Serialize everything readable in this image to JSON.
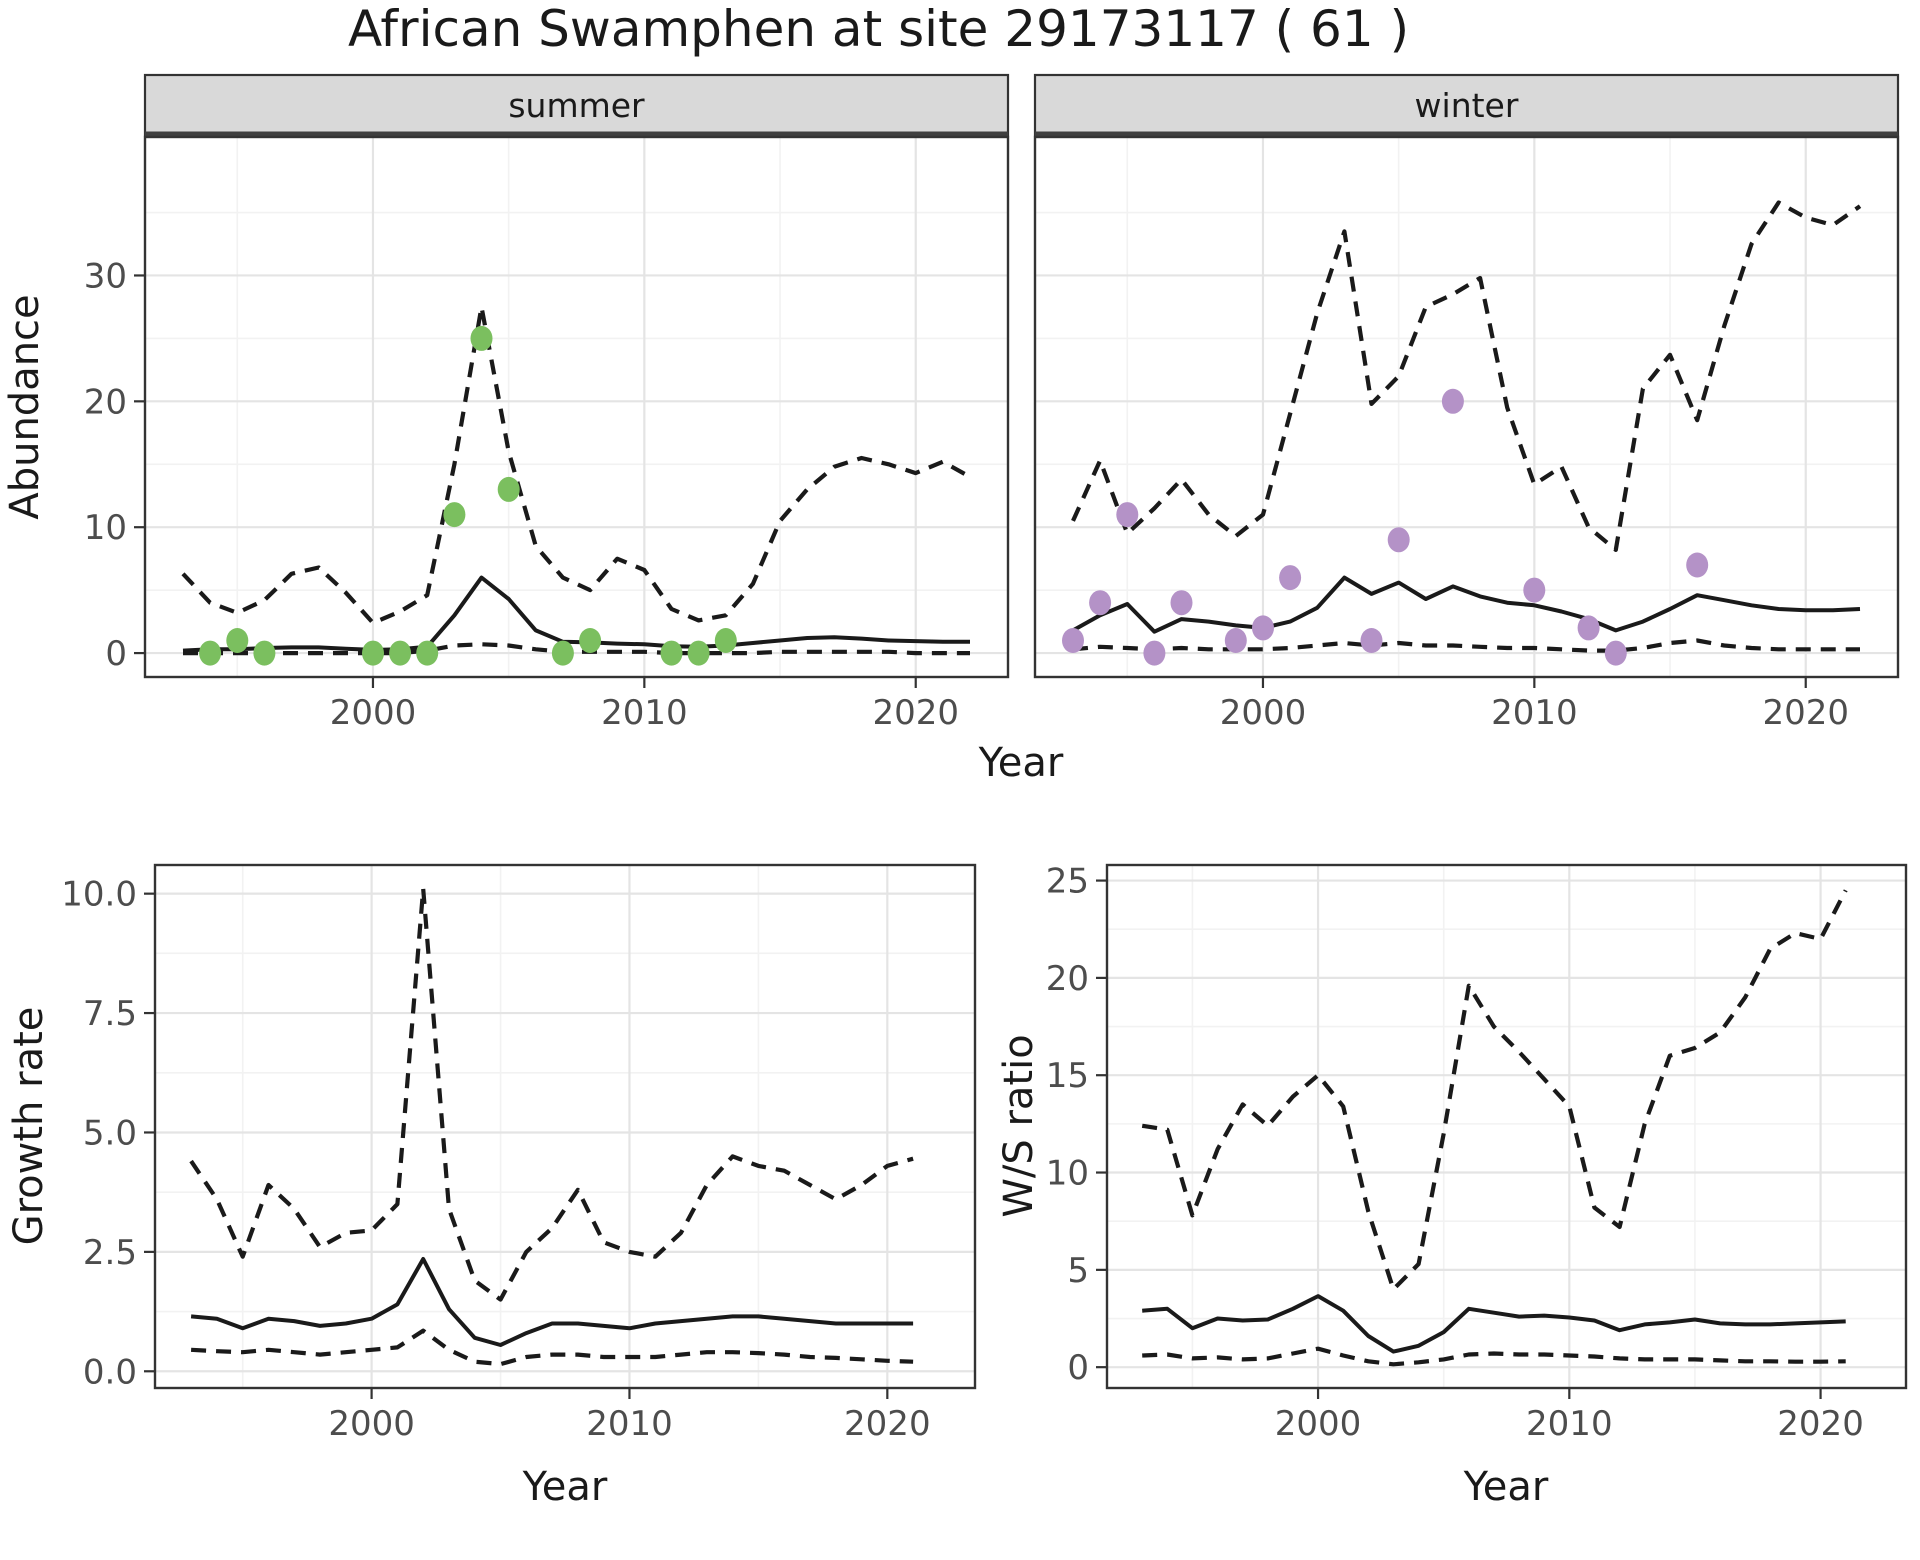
{
  "title": "African Swamphen at site 29173117 ( 61 )",
  "colors": {
    "background": "#FFFFFF",
    "panel_border": "#333333",
    "grid_major": "#E4E4E4",
    "grid_minor": "#F2F2F2",
    "line": "#1A1A1A",
    "strip_bg": "#D9D9D9",
    "strip_text": "#1A1A1A",
    "strip_underline": "#3F3F3F",
    "tick_text": "#4D4D4D",
    "axis_title_text": "#1A1A1A",
    "summer_point": "#7BBF5F",
    "winter_point": "#B492C7"
  },
  "chart_data": [
    {
      "type": "line",
      "title": "Abundance by season (faceted: summer | winter)",
      "xlabel": "Year",
      "ylabel": "Abundance",
      "xlim": [
        1991.6,
        2023.4
      ],
      "ylim": [
        -1.9,
        41
      ],
      "xticks": [
        2000,
        2010,
        2020
      ],
      "xtick_labels": [
        "2000",
        "2010",
        "2020"
      ],
      "xminor": [
        1995,
        2005,
        2015
      ],
      "yticks": [
        0,
        10,
        20,
        30
      ],
      "ytick_labels": [
        "0",
        "10",
        "20",
        "30"
      ],
      "yminor": [
        5,
        15,
        25,
        35
      ],
      "x": [
        1993,
        1994,
        1995,
        1996,
        1997,
        1998,
        1999,
        2000,
        2001,
        2002,
        2003,
        2004,
        2005,
        2006,
        2007,
        2008,
        2009,
        2010,
        2011,
        2012,
        2013,
        2014,
        2015,
        2016,
        2017,
        2018,
        2019,
        2020,
        2021,
        2022
      ],
      "facets": [
        {
          "label": "summer",
          "point_color": "#7BBF5F",
          "series": [
            {
              "name": "median",
              "style": "solid",
              "values": [
                0.2,
                0.3,
                0.3,
                0.4,
                0.45,
                0.45,
                0.35,
                0.25,
                0.3,
                0.5,
                3.0,
                6.0,
                4.3,
                1.8,
                0.9,
                0.85,
                0.75,
                0.7,
                0.55,
                0.5,
                0.6,
                0.8,
                1.0,
                1.2,
                1.25,
                1.15,
                1.0,
                0.95,
                0.9,
                0.9
              ]
            },
            {
              "name": "upper_ci",
              "style": "dashed",
              "values": [
                6.3,
                4.0,
                3.2,
                4.2,
                6.3,
                6.8,
                4.8,
                2.4,
                3.3,
                4.6,
                15.0,
                27.5,
                16.0,
                8.5,
                6.0,
                5.0,
                7.5,
                6.6,
                3.5,
                2.6,
                3.0,
                5.5,
                10.5,
                13.0,
                14.8,
                15.5,
                15.0,
                14.3,
                15.2,
                14.0
              ]
            },
            {
              "name": "lower_ci",
              "style": "dashed",
              "values": [
                0,
                0,
                0,
                0,
                0,
                0,
                0,
                0,
                0,
                0.2,
                0.6,
                0.7,
                0.6,
                0.3,
                0.1,
                0.1,
                0.1,
                0.1,
                0,
                0,
                0,
                0,
                0.1,
                0.1,
                0.1,
                0.1,
                0.1,
                0,
                0,
                0
              ]
            }
          ],
          "observations": {
            "years": [
              1994,
              1995,
              1996,
              2000,
              2001,
              2002,
              2003,
              2004,
              2005,
              2007,
              2008,
              2011,
              2012,
              2013
            ],
            "values": [
              0,
              1,
              0,
              0,
              0,
              0,
              11,
              25,
              13,
              0,
              1,
              0,
              0,
              1
            ]
          }
        },
        {
          "label": "winter",
          "point_color": "#B492C7",
          "series": [
            {
              "name": "median",
              "style": "solid",
              "values": [
                1.8,
                3.0,
                3.9,
                1.7,
                2.7,
                2.5,
                2.2,
                2.0,
                2.5,
                3.6,
                6.0,
                4.7,
                5.6,
                4.3,
                5.3,
                4.5,
                4.0,
                3.8,
                3.3,
                2.7,
                1.8,
                2.5,
                3.5,
                4.6,
                4.2,
                3.8,
                3.5,
                3.4,
                3.4,
                3.5
              ]
            },
            {
              "name": "upper_ci",
              "style": "dashed",
              "values": [
                10.5,
                15.3,
                9.5,
                11.5,
                13.8,
                11.0,
                9.3,
                11.0,
                19.0,
                27.0,
                33.5,
                19.8,
                22.0,
                27.5,
                28.5,
                29.8,
                19.5,
                13.4,
                14.8,
                10.0,
                8.2,
                21.0,
                23.7,
                18.5,
                26.0,
                32.5,
                35.8,
                34.6,
                34.0,
                35.5
              ]
            },
            {
              "name": "lower_ci",
              "style": "dashed",
              "values": [
                0.3,
                0.5,
                0.4,
                0.3,
                0.4,
                0.3,
                0.3,
                0.3,
                0.4,
                0.6,
                0.8,
                0.6,
                0.8,
                0.6,
                0.6,
                0.5,
                0.4,
                0.4,
                0.3,
                0.2,
                0.2,
                0.4,
                0.8,
                1.0,
                0.6,
                0.4,
                0.3,
                0.3,
                0.3,
                0.3
              ]
            }
          ],
          "observations": {
            "years": [
              1993,
              1994,
              1995,
              1996,
              1997,
              1999,
              2000,
              2001,
              2004,
              2005,
              2007,
              2010,
              2012,
              2013,
              2016
            ],
            "values": [
              1,
              4,
              11,
              0,
              4,
              1,
              2,
              6,
              1,
              9,
              20,
              5,
              2,
              0,
              7
            ]
          }
        }
      ]
    },
    {
      "type": "line",
      "title": "Growth rate",
      "xlabel": "Year",
      "ylabel": "Growth rate",
      "xlim": [
        1991.6,
        2023.4
      ],
      "ylim": [
        -0.35,
        10.6
      ],
      "xticks": [
        2000,
        2010,
        2020
      ],
      "xtick_labels": [
        "2000",
        "2010",
        "2020"
      ],
      "xminor": [
        1995,
        2005,
        2015
      ],
      "yticks": [
        0.0,
        2.5,
        5.0,
        7.5,
        10.0
      ],
      "ytick_labels": [
        "0.0",
        "2.5",
        "5.0",
        "7.5",
        "10.0"
      ],
      "yminor": [
        1.25,
        3.75,
        6.25,
        8.75
      ],
      "x": [
        1993,
        1994,
        1995,
        1996,
        1997,
        1998,
        1999,
        2000,
        2001,
        2002,
        2003,
        2004,
        2005,
        2006,
        2007,
        2008,
        2009,
        2010,
        2011,
        2012,
        2013,
        2014,
        2015,
        2016,
        2017,
        2018,
        2019,
        2020,
        2021
      ],
      "series": [
        {
          "name": "median",
          "style": "solid",
          "values": [
            1.15,
            1.1,
            0.9,
            1.1,
            1.05,
            0.95,
            1.0,
            1.1,
            1.4,
            2.35,
            1.3,
            0.7,
            0.55,
            0.8,
            1.0,
            1.0,
            0.95,
            0.9,
            1.0,
            1.05,
            1.1,
            1.15,
            1.15,
            1.1,
            1.05,
            1.0,
            1.0,
            1.0,
            1.0
          ]
        },
        {
          "name": "upper_ci",
          "style": "dashed",
          "values": [
            4.4,
            3.6,
            2.4,
            3.9,
            3.4,
            2.6,
            2.9,
            2.95,
            3.5,
            10.1,
            3.4,
            1.9,
            1.5,
            2.5,
            3.0,
            3.8,
            2.7,
            2.5,
            2.4,
            2.9,
            3.9,
            4.5,
            4.3,
            4.2,
            3.9,
            3.6,
            3.9,
            4.3,
            4.45
          ]
        },
        {
          "name": "lower_ci",
          "style": "dashed",
          "values": [
            0.45,
            0.42,
            0.4,
            0.45,
            0.4,
            0.35,
            0.4,
            0.45,
            0.5,
            0.85,
            0.45,
            0.2,
            0.15,
            0.3,
            0.35,
            0.35,
            0.3,
            0.3,
            0.3,
            0.35,
            0.4,
            0.4,
            0.38,
            0.35,
            0.3,
            0.28,
            0.25,
            0.22,
            0.2
          ]
        }
      ]
    },
    {
      "type": "line",
      "title": "W/S ratio",
      "xlabel": "Year",
      "ylabel": "W/S ratio",
      "xlim": [
        1991.6,
        2023.4
      ],
      "ylim": [
        -1.07,
        25.8
      ],
      "xticks": [
        2000,
        2010,
        2020
      ],
      "xtick_labels": [
        "2000",
        "2010",
        "2020"
      ],
      "xminor": [
        1995,
        2005,
        2015
      ],
      "yticks": [
        0,
        5,
        10,
        15,
        20,
        25
      ],
      "ytick_labels": [
        "0",
        "5",
        "10",
        "15",
        "20",
        "25"
      ],
      "yminor": [
        2.5,
        7.5,
        12.5,
        17.5,
        22.5
      ],
      "x": [
        1993,
        1994,
        1995,
        1996,
        1997,
        1998,
        1999,
        2000,
        2001,
        2002,
        2003,
        2004,
        2005,
        2006,
        2007,
        2008,
        2009,
        2010,
        2011,
        2012,
        2013,
        2014,
        2015,
        2016,
        2017,
        2018,
        2019,
        2020,
        2021
      ],
      "series": [
        {
          "name": "median",
          "style": "solid",
          "values": [
            2.9,
            3.0,
            2.0,
            2.5,
            2.4,
            2.45,
            3.0,
            3.65,
            2.9,
            1.6,
            0.8,
            1.1,
            1.8,
            3.0,
            2.8,
            2.6,
            2.65,
            2.55,
            2.4,
            1.9,
            2.2,
            2.3,
            2.45,
            2.25,
            2.2,
            2.2,
            2.25,
            2.3,
            2.35
          ]
        },
        {
          "name": "upper_ci",
          "style": "dashed",
          "values": [
            12.4,
            12.2,
            7.8,
            11.2,
            13.5,
            12.4,
            13.9,
            15.0,
            13.4,
            8.0,
            4.0,
            5.3,
            12.0,
            19.6,
            17.5,
            16.2,
            14.8,
            13.4,
            8.2,
            7.2,
            12.5,
            16.0,
            16.4,
            17.2,
            19.0,
            21.5,
            22.3,
            22.0,
            24.5
          ]
        },
        {
          "name": "lower_ci",
          "style": "dashed",
          "values": [
            0.6,
            0.65,
            0.45,
            0.5,
            0.4,
            0.45,
            0.7,
            0.95,
            0.6,
            0.3,
            0.15,
            0.25,
            0.4,
            0.65,
            0.7,
            0.65,
            0.65,
            0.6,
            0.55,
            0.45,
            0.4,
            0.4,
            0.4,
            0.35,
            0.3,
            0.3,
            0.28,
            0.28,
            0.3
          ]
        }
      ]
    }
  ]
}
